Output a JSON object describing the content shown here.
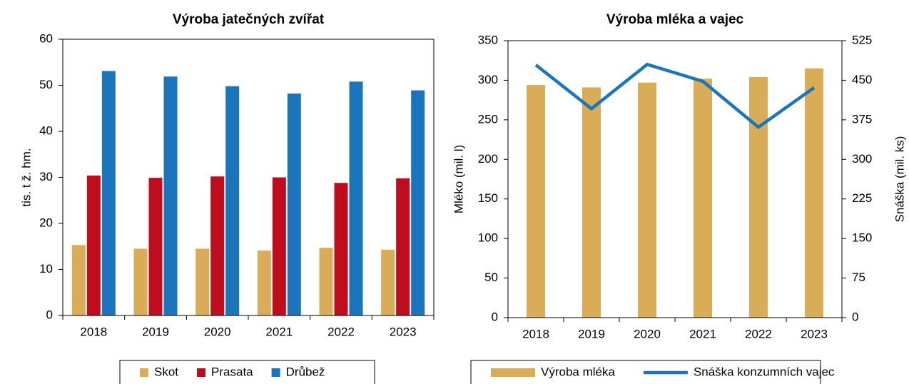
{
  "chart_data": [
    {
      "type": "bar",
      "title": "Výroba jatečných zvířat",
      "y_label": "tis. t ž. hm.",
      "categories": [
        "2018",
        "2019",
        "2020",
        "2021",
        "2022",
        "2023"
      ],
      "series": [
        {
          "name": "Skot",
          "color": "#d9ad57",
          "values": [
            15.3,
            14.5,
            14.5,
            14.1,
            14.7,
            14.3
          ]
        },
        {
          "name": "Prasata",
          "color": "#c00d1e",
          "values": [
            30.4,
            29.9,
            30.2,
            30.0,
            28.8,
            29.8
          ]
        },
        {
          "name": "Drůbež",
          "color": "#1a75bc",
          "values": [
            53.1,
            51.9,
            49.8,
            48.2,
            50.8,
            48.9
          ]
        }
      ],
      "ylim": [
        0,
        60
      ],
      "yticks": [
        0,
        10,
        20,
        30,
        40,
        50,
        60
      ],
      "grid": false,
      "legend": "bottom"
    },
    {
      "type": "combo",
      "title": "Výroba mléka a vajec",
      "y_label": "Mléko (mil. l)",
      "y2_label": "Snáška (mil. ks)",
      "categories": [
        "2018",
        "2019",
        "2020",
        "2021",
        "2022",
        "2023"
      ],
      "series": [
        {
          "name": "Výroba mléka",
          "color": "#d9ad57",
          "values": [
            294,
            291,
            297,
            302,
            304,
            315
          ]
        },
        {
          "name": "Snáška konzumních vajec",
          "color": "#1a75bc",
          "axis": "y2",
          "values": [
            479,
            396,
            480,
            448,
            361,
            436
          ]
        }
      ],
      "ylim": [
        0,
        350
      ],
      "yticks": [
        0,
        50,
        100,
        150,
        200,
        250,
        300,
        350
      ],
      "y2lim": [
        0,
        525
      ],
      "y2ticks": [
        0,
        75,
        150,
        225,
        300,
        375,
        450,
        525
      ],
      "grid": false,
      "legend": "bottom"
    }
  ]
}
